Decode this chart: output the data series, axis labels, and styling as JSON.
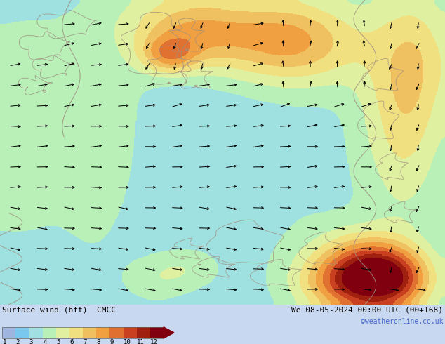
{
  "title_left": "Surface wind (bft)  CMCC",
  "title_right": "We 08-05-2024 00:00 UTC (00+168)",
  "credit": "©weatheronline.co.uk",
  "colorbar_levels": [
    1,
    2,
    3,
    4,
    5,
    6,
    7,
    8,
    9,
    10,
    11,
    12
  ],
  "colorbar_colors": [
    "#a0b4e0",
    "#78c8f0",
    "#a0e0e0",
    "#b8f0b8",
    "#e0f0a0",
    "#f0e080",
    "#f0c060",
    "#f0a040",
    "#e07030",
    "#c84020",
    "#a02010",
    "#800010"
  ],
  "fig_width": 6.34,
  "fig_height": 4.9,
  "dpi": 100
}
